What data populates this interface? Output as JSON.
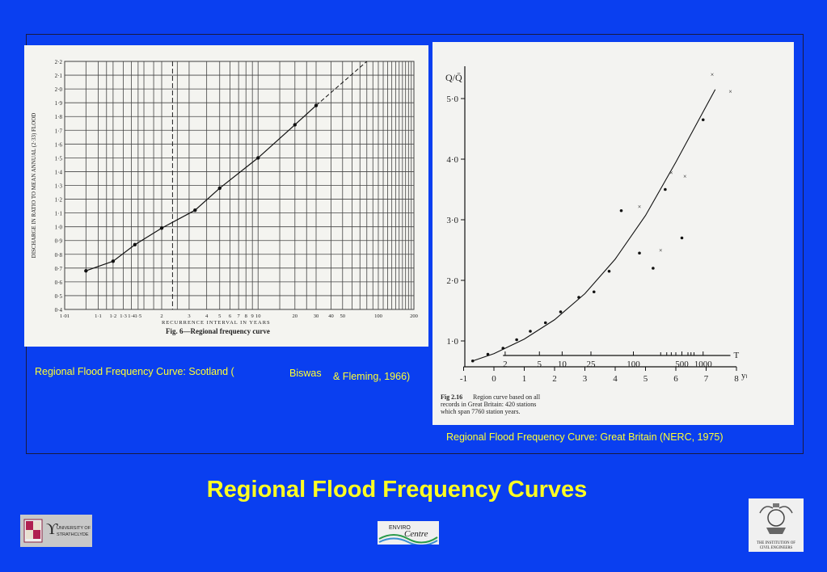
{
  "slide": {
    "title": "Regional Flood Frequency Curves",
    "caption_left_part1": "Regional Flood Frequency Curve: Scotland (",
    "caption_left_part2": "Biswas",
    "caption_left_part3": "& Fleming, 1966)",
    "caption_right": "Regional Flood Frequency Curve: Great Britain (NERC, 1975)"
  },
  "logos": {
    "strathclyde": {
      "line1": "UNIVERSITY OF",
      "line2": "STRATHCLYDE"
    },
    "enviro": {
      "line1": "ENVIRO",
      "line2": "Centre"
    },
    "ice": {
      "line1": "THE INSTITUTION OF",
      "line2": "CIVIL ENGINEERS"
    }
  },
  "chart_data": [
    {
      "type": "line",
      "title": "Fig. 6—Regional frequency curve",
      "xlabel": "RECURRENCE INTERVAL IN YEARS",
      "ylabel": "DISCHARGE IN RATIO TO MEAN ANNUAL (2·33) FLOOD",
      "x_tick_labels": [
        "1·01",
        "1·1",
        "1·2",
        "1·3",
        "1·4",
        "1·5",
        "2",
        "3",
        "4",
        "5",
        "6",
        "7",
        "8",
        "9",
        "10",
        "20",
        "30",
        "40",
        "50",
        "100",
        "200"
      ],
      "y_ticks": [
        "0·4",
        "0·5",
        "0·6",
        "0·7",
        "0·8",
        "0·9",
        "1·0",
        "1·1",
        "1·2",
        "1·3",
        "1·4",
        "1·5",
        "1·6",
        "1·7",
        "1·8",
        "1·9",
        "2·0",
        "2·1",
        "2·2"
      ],
      "ylim": [
        0.4,
        2.2
      ],
      "reference_line_x": 2.33,
      "points": [
        {
          "x": 1.05,
          "y": 0.68
        },
        {
          "x": 1.2,
          "y": 0.75
        },
        {
          "x": 1.45,
          "y": 0.87
        },
        {
          "x": 2.0,
          "y": 0.99
        },
        {
          "x": 3.3,
          "y": 1.12
        },
        {
          "x": 5.0,
          "y": 1.28
        },
        {
          "x": 10,
          "y": 1.5
        },
        {
          "x": 20,
          "y": 1.74
        },
        {
          "x": 30,
          "y": 1.88
        }
      ],
      "grid": true
    },
    {
      "type": "scatter",
      "title": "",
      "caption_label": "Fig 2.16",
      "caption_text": "Region curve based on all records in Great Britain: 420 stations which span 7760 station years.",
      "ylabel": "Q/Q̄",
      "xlabel": "yₗ",
      "top_axis_label": "T",
      "y_tick_labels": [
        "1·0",
        "2·0",
        "3·0",
        "4·0",
        "5·0"
      ],
      "x_tick_labels": [
        "-1",
        "0",
        "1",
        "2",
        "3",
        "4",
        "5",
        "6",
        "7",
        "8"
      ],
      "T_tick_labels": [
        "2",
        "5",
        "10",
        "25",
        "100",
        "500",
        "1000"
      ],
      "xlim": [
        -1,
        8
      ],
      "ylim": [
        0.6,
        5.3
      ],
      "curve": [
        {
          "x": -0.7,
          "y": 0.67
        },
        {
          "x": 0,
          "y": 0.79
        },
        {
          "x": 1,
          "y": 1.03
        },
        {
          "x": 2,
          "y": 1.35
        },
        {
          "x": 3,
          "y": 1.78
        },
        {
          "x": 4,
          "y": 2.35
        },
        {
          "x": 5,
          "y": 3.07
        },
        {
          "x": 6,
          "y": 3.95
        },
        {
          "x": 7.3,
          "y": 5.15
        }
      ],
      "dots": [
        {
          "x": -0.7,
          "y": 0.67
        },
        {
          "x": -0.2,
          "y": 0.78
        },
        {
          "x": 0.3,
          "y": 0.88
        },
        {
          "x": 0.75,
          "y": 1.02
        },
        {
          "x": 1.2,
          "y": 1.16
        },
        {
          "x": 1.7,
          "y": 1.3
        },
        {
          "x": 2.2,
          "y": 1.48
        },
        {
          "x": 2.8,
          "y": 1.72
        },
        {
          "x": 3.3,
          "y": 1.81
        },
        {
          "x": 3.8,
          "y": 2.15
        },
        {
          "x": 4.2,
          "y": 3.15
        },
        {
          "x": 4.8,
          "y": 2.45
        },
        {
          "x": 5.25,
          "y": 2.2
        },
        {
          "x": 5.65,
          "y": 3.5
        },
        {
          "x": 6.2,
          "y": 2.7
        },
        {
          "x": 6.9,
          "y": 4.65
        }
      ],
      "crosses": [
        {
          "x": 4.8,
          "y": 3.22
        },
        {
          "x": 5.5,
          "y": 2.5
        },
        {
          "x": 5.85,
          "y": 3.78
        },
        {
          "x": 6.3,
          "y": 3.72
        },
        {
          "x": 7.2,
          "y": 5.4
        },
        {
          "x": 7.8,
          "y": 5.12
        }
      ]
    }
  ]
}
